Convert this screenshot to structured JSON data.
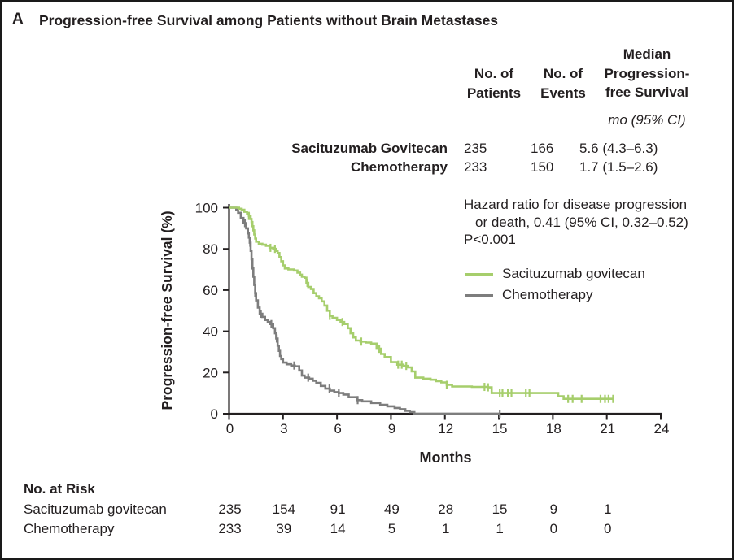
{
  "panel_label": "A",
  "title": "Progression-free Survival among Patients without Brain Metastases",
  "stats_table": {
    "header": {
      "patients": "No. of\nPatients",
      "events": "No. of\nEvents",
      "median": "Median\nProgression-\nfree Survival",
      "units": "mo (95% CI)"
    },
    "rows": [
      {
        "label": "Sacituzumab Govitecan",
        "patients": "235",
        "events": "166",
        "median": "5.6 (4.3–6.3)"
      },
      {
        "label": "Chemotherapy",
        "patients": "233",
        "events": "150",
        "median": "1.7 (1.5–2.6)"
      }
    ]
  },
  "annotation": {
    "line1": "Hazard ratio for disease progression",
    "line2": "or death, 0.41 (95% CI, 0.32–0.52)",
    "line3": "P<0.001"
  },
  "legend": {
    "items": [
      {
        "label": "Sacituzumab govitecan",
        "color": "#a6ce6c"
      },
      {
        "label": "Chemotherapy",
        "color": "#7d7d7d"
      }
    ]
  },
  "chart_data": {
    "type": "line",
    "subtype": "kaplan-meier-step",
    "xlabel": "Months",
    "ylabel": "Progression-free Survival (%)",
    "xlim": [
      0,
      24
    ],
    "ylim": [
      0,
      100
    ],
    "x_ticks": [
      0,
      3,
      6,
      9,
      12,
      15,
      18,
      21,
      24
    ],
    "y_ticks": [
      0,
      20,
      40,
      60,
      80,
      100
    ],
    "grid": false,
    "legend_position": "upper right",
    "axis_color": "#231f20",
    "series": [
      {
        "name": "Sacituzumab govitecan",
        "color": "#a6ce6c",
        "points": [
          [
            0,
            100
          ],
          [
            0.55,
            99.5
          ],
          [
            0.7,
            99
          ],
          [
            0.85,
            98
          ],
          [
            1.0,
            97
          ],
          [
            1.1,
            96
          ],
          [
            1.2,
            94.5
          ],
          [
            1.25,
            93
          ],
          [
            1.3,
            91
          ],
          [
            1.35,
            89
          ],
          [
            1.4,
            87
          ],
          [
            1.45,
            85
          ],
          [
            1.5,
            83.5
          ],
          [
            1.65,
            82.5
          ],
          [
            1.85,
            82
          ],
          [
            2.05,
            81.5
          ],
          [
            2.25,
            80.5
          ],
          [
            2.45,
            80
          ],
          [
            2.6,
            79
          ],
          [
            2.7,
            78
          ],
          [
            2.8,
            76
          ],
          [
            2.9,
            74
          ],
          [
            3.0,
            72
          ],
          [
            3.1,
            70.5
          ],
          [
            3.3,
            70
          ],
          [
            3.6,
            69.5
          ],
          [
            3.8,
            68.5
          ],
          [
            3.95,
            67.5
          ],
          [
            4.05,
            66.5
          ],
          [
            4.2,
            66
          ],
          [
            4.3,
            63.5
          ],
          [
            4.4,
            61.5
          ],
          [
            4.55,
            60.5
          ],
          [
            4.7,
            58.5
          ],
          [
            4.85,
            57
          ],
          [
            5.0,
            56
          ],
          [
            5.15,
            54.5
          ],
          [
            5.3,
            52.5
          ],
          [
            5.45,
            50
          ],
          [
            5.6,
            47.5
          ],
          [
            5.75,
            46.5
          ],
          [
            6.0,
            45.5
          ],
          [
            6.2,
            44.5
          ],
          [
            6.4,
            43.5
          ],
          [
            6.6,
            41.5
          ],
          [
            6.75,
            39
          ],
          [
            6.9,
            37
          ],
          [
            7.05,
            35.5
          ],
          [
            7.3,
            35
          ],
          [
            7.6,
            34.5
          ],
          [
            7.9,
            34
          ],
          [
            8.2,
            31.5
          ],
          [
            8.45,
            29
          ],
          [
            8.65,
            27.5
          ],
          [
            9.0,
            25
          ],
          [
            9.35,
            23.8
          ],
          [
            9.7,
            23.2
          ],
          [
            9.95,
            22.5
          ],
          [
            10.15,
            20.5
          ],
          [
            10.35,
            17.5
          ],
          [
            10.8,
            17
          ],
          [
            11.2,
            16.5
          ],
          [
            11.5,
            15.8
          ],
          [
            11.8,
            15.2
          ],
          [
            12.1,
            14
          ],
          [
            12.4,
            13.2
          ],
          [
            13.5,
            13
          ],
          [
            14.4,
            12.8
          ],
          [
            14.6,
            10
          ],
          [
            18.1,
            10
          ],
          [
            18.3,
            8.5
          ],
          [
            18.6,
            7.2
          ],
          [
            21.35,
            7.2
          ]
        ],
        "censor_months": [
          1.1,
          2.3,
          2.55,
          4.35,
          5.6,
          6.3,
          7.35,
          8.35,
          9.4,
          9.6,
          9.85,
          12.1,
          14.2,
          14.4,
          15.05,
          15.2,
          15.5,
          15.7,
          16.5,
          16.7,
          18.85,
          19.1,
          19.6,
          20.65,
          20.9,
          21.1,
          21.35
        ]
      },
      {
        "name": "Chemotherapy",
        "color": "#7d7d7d",
        "points": [
          [
            0,
            100
          ],
          [
            0.4,
            99
          ],
          [
            0.5,
            97.5
          ],
          [
            0.65,
            95
          ],
          [
            0.8,
            92.5
          ],
          [
            0.95,
            90
          ],
          [
            1.05,
            87.5
          ],
          [
            1.1,
            85.5
          ],
          [
            1.15,
            83
          ],
          [
            1.2,
            79
          ],
          [
            1.25,
            75
          ],
          [
            1.3,
            70.5
          ],
          [
            1.35,
            66.5
          ],
          [
            1.4,
            62.5
          ],
          [
            1.45,
            58.5
          ],
          [
            1.5,
            55
          ],
          [
            1.6,
            51.5
          ],
          [
            1.7,
            48.5
          ],
          [
            1.85,
            47
          ],
          [
            2.0,
            45.5
          ],
          [
            2.15,
            44.5
          ],
          [
            2.3,
            43.5
          ],
          [
            2.45,
            41.5
          ],
          [
            2.55,
            39
          ],
          [
            2.62,
            36.5
          ],
          [
            2.7,
            33
          ],
          [
            2.77,
            30.5
          ],
          [
            2.83,
            28
          ],
          [
            2.9,
            26.5
          ],
          [
            3.0,
            24.8
          ],
          [
            3.2,
            24
          ],
          [
            3.45,
            23.4
          ],
          [
            3.65,
            23
          ],
          [
            3.9,
            21
          ],
          [
            4.05,
            18.5
          ],
          [
            4.2,
            17.5
          ],
          [
            4.45,
            17
          ],
          [
            4.65,
            16
          ],
          [
            4.85,
            15
          ],
          [
            5.1,
            13.5
          ],
          [
            5.35,
            12.2
          ],
          [
            5.6,
            11.2
          ],
          [
            5.85,
            10.5
          ],
          [
            6.1,
            10
          ],
          [
            6.35,
            9.3
          ],
          [
            6.65,
            8
          ],
          [
            7.1,
            6.6
          ],
          [
            7.4,
            6
          ],
          [
            7.9,
            5.2
          ],
          [
            8.4,
            4.3
          ],
          [
            8.8,
            3.6
          ],
          [
            9.2,
            2.8
          ],
          [
            9.5,
            2.2
          ],
          [
            9.8,
            1.4
          ],
          [
            10.05,
            0.8
          ],
          [
            10.3,
            0
          ],
          [
            15.05,
            0
          ]
        ],
        "censor_months": [
          0.88,
          1.17,
          1.45,
          1.77,
          2.35,
          2.65,
          3.62,
          4.4,
          5.58,
          6.1,
          7.15,
          15.05
        ]
      }
    ]
  },
  "at_risk": {
    "title": "No. at Risk",
    "months": [
      0,
      3,
      6,
      9,
      12,
      15,
      18,
      21
    ],
    "rows": [
      {
        "label": "Sacituzumab govitecan",
        "counts": [
          "235",
          "154",
          "91",
          "49",
          "28",
          "15",
          "9",
          "1"
        ]
      },
      {
        "label": "Chemotherapy",
        "counts": [
          "233",
          "39",
          "14",
          "5",
          "1",
          "1",
          "0",
          "0"
        ]
      }
    ]
  }
}
